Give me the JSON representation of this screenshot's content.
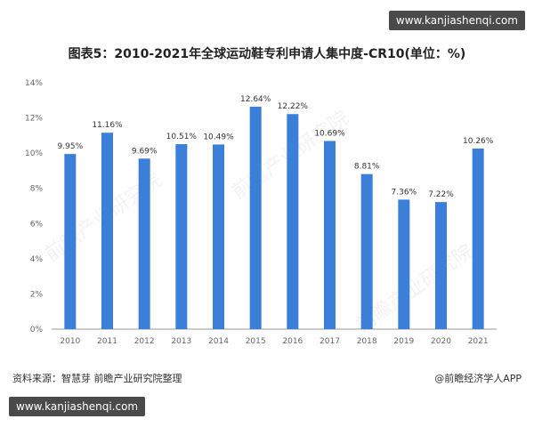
{
  "site_badge": "www.kanjiashenqi.com",
  "watermark": "前瞻产业研究院",
  "footer": {
    "source": "资料来源：智慧芽 前瞻产业研究院整理",
    "brand": "@前瞻经济学人APP"
  },
  "colors": {
    "bar": "#3b7fd9",
    "axis": "#666666",
    "grid": "#e6e6e6",
    "label": "#333333"
  },
  "chart_data": {
    "type": "bar",
    "title": "图表5：2010-2021年全球运动鞋专利申请人集中度-CR10(单位：%)",
    "categories": [
      "2010",
      "2011",
      "2012",
      "2013",
      "2014",
      "2015",
      "2016",
      "2017",
      "2018",
      "2019",
      "2020",
      "2021"
    ],
    "values": [
      9.95,
      11.16,
      9.69,
      10.51,
      10.49,
      12.64,
      12.22,
      10.69,
      8.81,
      7.36,
      7.22,
      10.26
    ],
    "data_labels": [
      "9.95%",
      "11.16%",
      "9.69%",
      "10.51%",
      "10.49%",
      "12.64%",
      "12.22%",
      "10.69%",
      "8.81%",
      "7.36%",
      "7.22%",
      "10.26%"
    ],
    "yticks": [
      "0%",
      "2%",
      "4%",
      "6%",
      "8%",
      "10%",
      "12%",
      "14%"
    ],
    "ylim": [
      0,
      14
    ],
    "grid": false,
    "legend": "none"
  }
}
